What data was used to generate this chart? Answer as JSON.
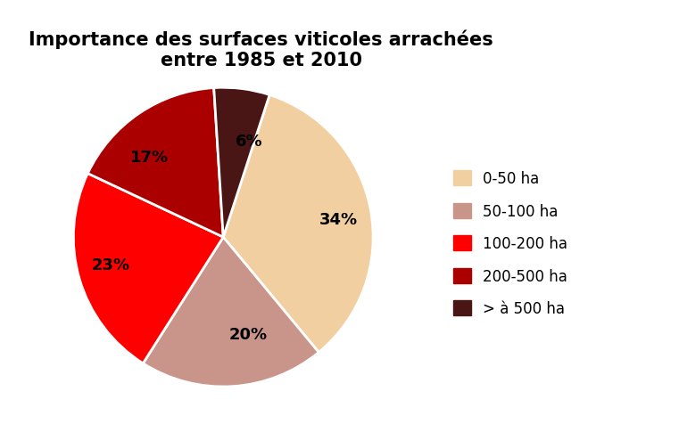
{
  "title": "Importance des surfaces viticoles arrachées\nentre 1985 et 2010",
  "slices": [
    34,
    20,
    23,
    17,
    6
  ],
  "labels": [
    "34%",
    "20%",
    "23%",
    "17%",
    "6%"
  ],
  "colors": [
    "#F2CFA0",
    "#C9948A",
    "#FF0000",
    "#AA0000",
    "#4A1515"
  ],
  "legend_labels": [
    "0-50 ha",
    "50-100 ha",
    "100-200 ha",
    "200-500 ha",
    "> à 500 ha"
  ],
  "legend_colors": [
    "#F2CFA0",
    "#C9948A",
    "#FF0000",
    "#AA0000",
    "#4A1515"
  ],
  "startangle": 72,
  "title_fontsize": 15,
  "label_fontsize": 13,
  "background_color": "#FFFFFF"
}
